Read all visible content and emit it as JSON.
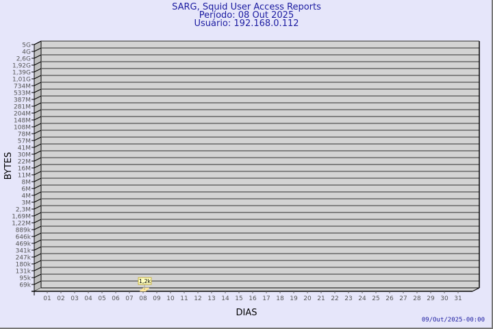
{
  "header": {
    "title": "SARG, Squid User Access Reports",
    "period": "Período: 08 Out 2025",
    "user": "Usuário: 192.168.0.112"
  },
  "footer": {
    "timestamp": "09/Out/2025-00:00"
  },
  "colors": {
    "background": "#e6e6fa",
    "plot": "#d3d3d3",
    "bar": "#ffe9a0",
    "title": "#1a1aa0"
  },
  "chart_data": {
    "type": "bar",
    "xlabel": "DIAS",
    "ylabel": "BYTES",
    "y_scale": "log",
    "y_tick_labels": [
      "5G",
      "4G",
      "2,6G",
      "1,92G",
      "1,39G",
      "1,01G",
      "734M",
      "533M",
      "387M",
      "281M",
      "204M",
      "148M",
      "108M",
      "78M",
      "57M",
      "41M",
      "30M",
      "22M",
      "16M",
      "11M",
      "8M",
      "6M",
      "4M",
      "3M",
      "2,3M",
      "1,69M",
      "1,22M",
      "889k",
      "646k",
      "469k",
      "341k",
      "247k",
      "180k",
      "131k",
      "95k",
      "69k"
    ],
    "categories": [
      "01",
      "02",
      "03",
      "04",
      "05",
      "06",
      "07",
      "08",
      "09",
      "10",
      "11",
      "12",
      "13",
      "14",
      "15",
      "16",
      "17",
      "18",
      "19",
      "20",
      "21",
      "22",
      "23",
      "24",
      "25",
      "26",
      "27",
      "28",
      "29",
      "30",
      "31"
    ],
    "bars": [
      {
        "category": "08",
        "value": 1200,
        "label": "1,2k"
      }
    ],
    "grid": true
  }
}
